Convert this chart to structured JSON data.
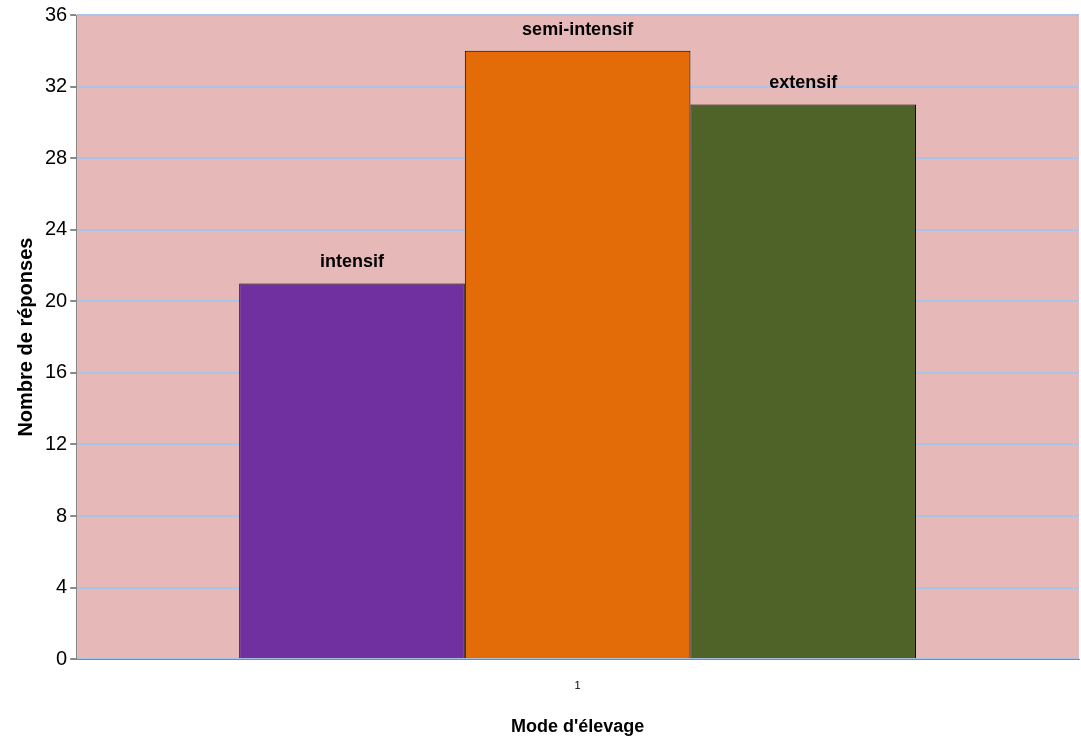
{
  "chart_data": {
    "type": "bar",
    "xlabel": "Mode d'élevage",
    "ylabel": "Nombre de réponses",
    "categories": [
      "1"
    ],
    "series": [
      {
        "name": "intensif",
        "color": "#7030a0",
        "values": [
          21
        ]
      },
      {
        "name": "semi-intensif",
        "color": "#e36c09",
        "values": [
          34
        ]
      },
      {
        "name": "extensif",
        "color": "#4f6228",
        "values": [
          31
        ]
      }
    ],
    "ylim": [
      0,
      36
    ],
    "yticks": [
      0,
      4,
      8,
      12,
      16,
      20,
      24,
      28,
      32,
      36
    ],
    "grid": "y",
    "legend": false
  }
}
